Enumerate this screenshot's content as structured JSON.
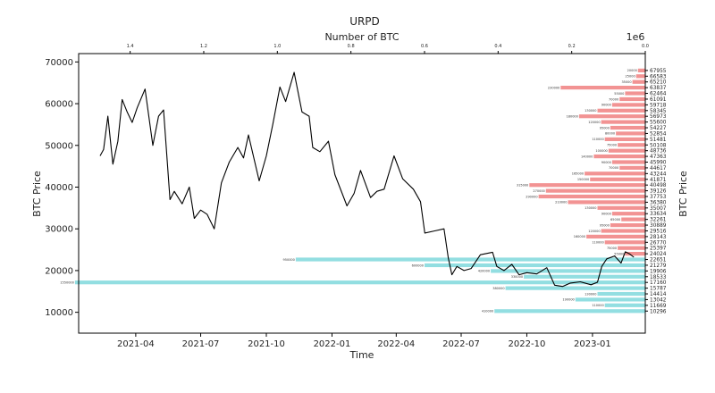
{
  "chart_data": {
    "type": "line",
    "title": "URPD",
    "xlabel": "Time",
    "ylabel": "BTC Price",
    "top_xlabel": "Number of BTC",
    "top_x_scale_note": "1e6",
    "right_ylabel": "BTC Price",
    "ylim": [
      5000,
      72000
    ],
    "y_ticks": [
      "10000",
      "20000",
      "30000",
      "40000",
      "50000",
      "60000",
      "70000"
    ],
    "x_ticks": [
      "2021-04",
      "2021-07",
      "2021-10",
      "2022-01",
      "2022-04",
      "2022-07",
      "2022-10",
      "2023-01"
    ],
    "top_ticks": [
      "1.4",
      "1.2",
      "1.0",
      "0.8",
      "0.6",
      "0.4",
      "0.2",
      "0.0"
    ],
    "xlim_top": [
      1.54,
      0.0
    ],
    "price_series": [
      [
        "2021-02-10",
        47500
      ],
      [
        "2021-02-15",
        49000
      ],
      [
        "2021-02-21",
        57000
      ],
      [
        "2021-02-28",
        45500
      ],
      [
        "2021-03-07",
        51000
      ],
      [
        "2021-03-13",
        61000
      ],
      [
        "2021-03-20",
        58000
      ],
      [
        "2021-03-27",
        55500
      ],
      [
        "2021-04-03",
        59000
      ],
      [
        "2021-04-14",
        63500
      ],
      [
        "2021-04-25",
        50000
      ],
      [
        "2021-05-03",
        57000
      ],
      [
        "2021-05-10",
        58500
      ],
      [
        "2021-05-19",
        37000
      ],
      [
        "2021-05-25",
        39000
      ],
      [
        "2021-06-05",
        36000
      ],
      [
        "2021-06-15",
        40000
      ],
      [
        "2021-06-22",
        32500
      ],
      [
        "2021-07-01",
        34500
      ],
      [
        "2021-07-10",
        33500
      ],
      [
        "2021-07-20",
        30000
      ],
      [
        "2021-07-30",
        41000
      ],
      [
        "2021-08-10",
        46000
      ],
      [
        "2021-08-22",
        49500
      ],
      [
        "2021-08-30",
        47000
      ],
      [
        "2021-09-06",
        52500
      ],
      [
        "2021-09-21",
        41500
      ],
      [
        "2021-10-01",
        47500
      ],
      [
        "2021-10-10",
        55000
      ],
      [
        "2021-10-20",
        64000
      ],
      [
        "2021-10-28",
        60500
      ],
      [
        "2021-11-09",
        67500
      ],
      [
        "2021-11-20",
        58000
      ],
      [
        "2021-11-30",
        57000
      ],
      [
        "2021-12-05",
        49500
      ],
      [
        "2021-12-15",
        48500
      ],
      [
        "2021-12-27",
        51000
      ],
      [
        "2022-01-05",
        43000
      ],
      [
        "2022-01-22",
        35500
      ],
      [
        "2022-02-01",
        38500
      ],
      [
        "2022-02-10",
        44000
      ],
      [
        "2022-02-24",
        37500
      ],
      [
        "2022-03-05",
        39000
      ],
      [
        "2022-03-15",
        39500
      ],
      [
        "2022-03-29",
        47500
      ],
      [
        "2022-04-10",
        42000
      ],
      [
        "2022-04-25",
        39500
      ],
      [
        "2022-05-05",
        36500
      ],
      [
        "2022-05-11",
        29000
      ],
      [
        "2022-05-25",
        29500
      ],
      [
        "2022-06-07",
        30000
      ],
      [
        "2022-06-13",
        23000
      ],
      [
        "2022-06-18",
        19000
      ],
      [
        "2022-06-25",
        21000
      ],
      [
        "2022-07-05",
        20000
      ],
      [
        "2022-07-15",
        20500
      ],
      [
        "2022-07-28",
        23800
      ],
      [
        "2022-08-14",
        24400
      ],
      [
        "2022-08-20",
        21000
      ],
      [
        "2022-08-30",
        20000
      ],
      [
        "2022-09-10",
        21500
      ],
      [
        "2022-09-20",
        19000
      ],
      [
        "2022-10-01",
        19500
      ],
      [
        "2022-10-15",
        19200
      ],
      [
        "2022-10-29",
        20700
      ],
      [
        "2022-11-09",
        16500
      ],
      [
        "2022-11-20",
        16200
      ],
      [
        "2022-12-01",
        17000
      ],
      [
        "2022-12-15",
        17300
      ],
      [
        "2022-12-30",
        16600
      ],
      [
        "2023-01-08",
        17200
      ],
      [
        "2023-01-14",
        21000
      ],
      [
        "2023-01-21",
        22800
      ],
      [
        "2023-02-01",
        23500
      ],
      [
        "2023-02-10",
        21800
      ],
      [
        "2023-02-16",
        24500
      ],
      [
        "2023-02-22",
        24000
      ],
      [
        "2023-02-28",
        23200
      ]
    ],
    "urpd_levels": [
      "67955",
      "66583",
      "65210",
      "63837",
      "62464",
      "61091",
      "59718",
      "58345",
      "56973",
      "55600",
      "54227",
      "52854",
      "51481",
      "50108",
      "48736",
      "47363",
      "45990",
      "44617",
      "43244",
      "41871",
      "40498",
      "39126",
      "37753",
      "36380",
      "35007",
      "33634",
      "32261",
      "30889",
      "29516",
      "28143",
      "26770",
      "25397",
      "24024",
      "22651",
      "21279",
      "19906",
      "18533",
      "17160",
      "15787",
      "14414",
      "13042",
      "11669",
      "10296"
    ],
    "urpd_bars": [
      {
        "price": 67955,
        "btc": 20000
      },
      {
        "price": 66583,
        "btc": 25000
      },
      {
        "price": 65210,
        "btc": 35000
      },
      {
        "price": 63837,
        "btc": 230000
      },
      {
        "price": 62464,
        "btc": 55000
      },
      {
        "price": 61091,
        "btc": 70000
      },
      {
        "price": 59718,
        "btc": 90000
      },
      {
        "price": 58345,
        "btc": 130000
      },
      {
        "price": 56973,
        "btc": 180000
      },
      {
        "price": 55600,
        "btc": 120000
      },
      {
        "price": 54227,
        "btc": 95000
      },
      {
        "price": 52854,
        "btc": 80000
      },
      {
        "price": 51481,
        "btc": 110000
      },
      {
        "price": 50108,
        "btc": 75000
      },
      {
        "price": 48736,
        "btc": 100000
      },
      {
        "price": 47363,
        "btc": 140000
      },
      {
        "price": 45990,
        "btc": 90000
      },
      {
        "price": 44617,
        "btc": 70000
      },
      {
        "price": 43244,
        "btc": 165000
      },
      {
        "price": 41871,
        "btc": 150000
      },
      {
        "price": 40498,
        "btc": 315000
      },
      {
        "price": 39126,
        "btc": 270000
      },
      {
        "price": 37753,
        "btc": 290000
      },
      {
        "price": 36380,
        "btc": 210000
      },
      {
        "price": 35007,
        "btc": 130000
      },
      {
        "price": 33634,
        "btc": 90000
      },
      {
        "price": 32261,
        "btc": 65000
      },
      {
        "price": 30889,
        "btc": 95000
      },
      {
        "price": 29516,
        "btc": 120000
      },
      {
        "price": 28143,
        "btc": 160000
      },
      {
        "price": 26770,
        "btc": 110000
      },
      {
        "price": 25397,
        "btc": 75000
      },
      {
        "price": 24024,
        "btc": 55000
      },
      {
        "price": 22651,
        "btc": 950000
      },
      {
        "price": 21279,
        "btc": 600000
      },
      {
        "price": 19906,
        "btc": 420000
      },
      {
        "price": 18533,
        "btc": 330000
      },
      {
        "price": 17160,
        "btc": 1550000
      },
      {
        "price": 15787,
        "btc": 380000
      },
      {
        "price": 14414,
        "btc": 130000
      },
      {
        "price": 13042,
        "btc": 190000
      },
      {
        "price": 11669,
        "btc": 110000
      },
      {
        "price": 10296,
        "btc": 410000
      }
    ],
    "colors": {
      "price_line": "#000000",
      "bar_above_price": "#f08080",
      "bar_below_price": "#7fd8dc"
    }
  }
}
